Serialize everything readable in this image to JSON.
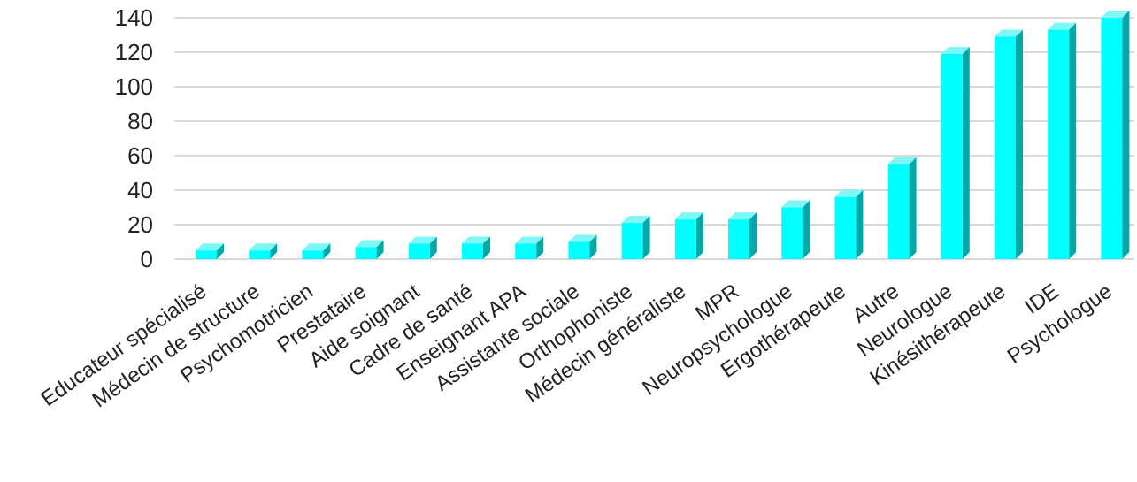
{
  "chart_data": {
    "type": "bar",
    "title": "",
    "xlabel": "",
    "ylabel": "",
    "ylim": [
      0,
      140
    ],
    "yticks": [
      0,
      20,
      40,
      60,
      80,
      100,
      120,
      140
    ],
    "grid": true,
    "legend": "none",
    "style": "3d-columns",
    "categories": [
      "Educateur spécialisé",
      "Médecin de structure",
      "Psychomotricien",
      "Prestataire",
      "Aide soignant",
      "Cadre de santé",
      "Enseignant APA",
      "Assistante sociale",
      "Orthophoniste",
      "Médecin généraliste",
      "MPR",
      "Neuropsychologue",
      "Ergothérapeute",
      "Autre",
      "Neurologue",
      "Kinésithérapeute",
      "IDE",
      "Psychologue"
    ],
    "values": [
      5,
      5,
      5,
      7,
      9,
      9,
      9,
      10,
      21,
      23,
      23,
      30,
      36,
      55,
      119,
      129,
      133,
      140
    ],
    "colors": {
      "front": "#00ffff",
      "side": "#00a8a8",
      "top": "#7ff7f7",
      "grid": "#d9d9d9",
      "text": "#222222"
    }
  }
}
